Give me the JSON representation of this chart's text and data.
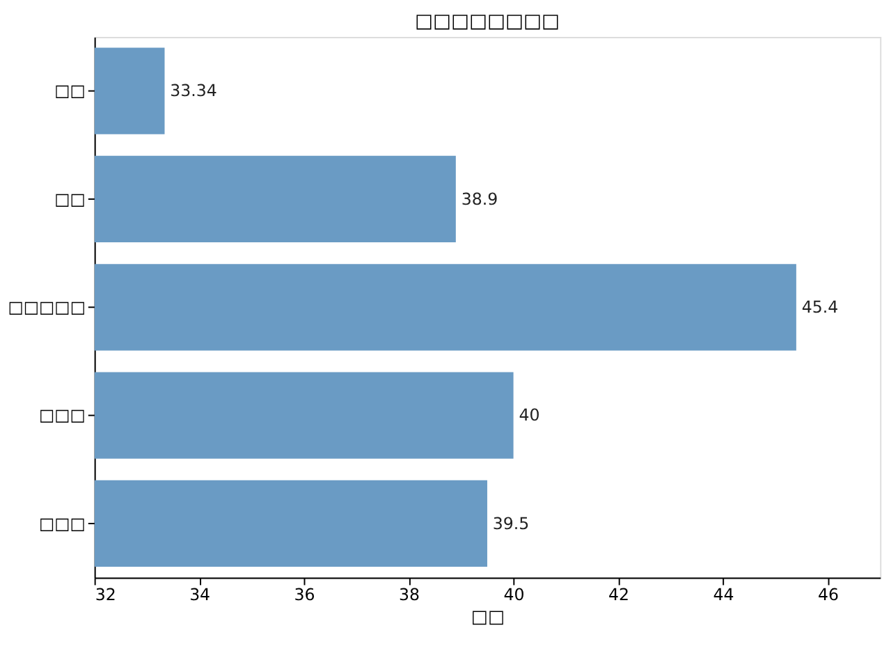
{
  "chart_data": {
    "type": "bar",
    "orientation": "horizontal",
    "title": "□□□□□□□□",
    "xlabel": "□□",
    "categories": [
      "□□",
      "□□",
      "□□□□□",
      "□□□",
      "□□□"
    ],
    "values": [
      33.34,
      38.9,
      45.4,
      40,
      39.5
    ],
    "color": "#6a9bc4",
    "xlim": [
      32,
      47
    ],
    "xticks": [
      32,
      34,
      36,
      38,
      40,
      42,
      44,
      46
    ],
    "grid": false,
    "data_labels": true
  }
}
